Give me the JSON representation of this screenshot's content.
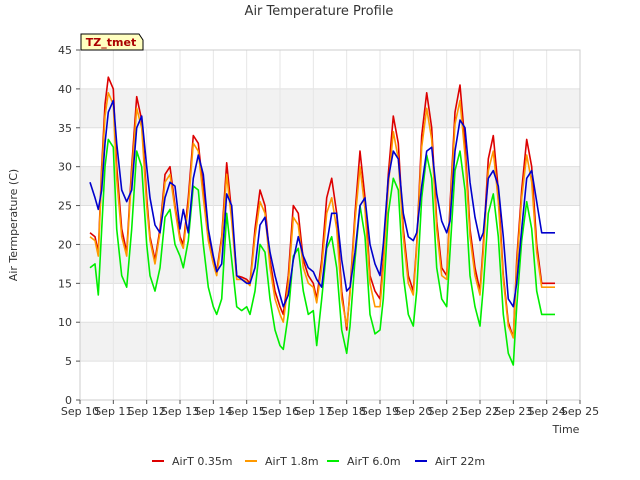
{
  "chart_data": {
    "type": "line",
    "title": "Air Temperature Profile",
    "xlabel": "Time",
    "ylabel": "Air Termperature (C)",
    "station_tag": "TZ_tmet",
    "xlim": [
      10,
      25
    ],
    "ylim": [
      0,
      45
    ],
    "x_ticks": [
      "Sep 10",
      "Sep 11",
      "Sep 12",
      "Sep 13",
      "Sep 14",
      "Sep 15",
      "Sep 16",
      "Sep 17",
      "Sep 18",
      "Sep 19",
      "Sep 20",
      "Sep 21",
      "Sep 22",
      "Sep 23",
      "Sep 24",
      "Sep 25"
    ],
    "y_ticks": [
      0,
      5,
      10,
      15,
      20,
      25,
      30,
      35,
      40,
      45
    ],
    "grid": true,
    "legend_position": "bottom",
    "series": [
      {
        "name": "AirT 0.35m",
        "color": "#dd0000",
        "x": [
          10.3,
          10.45,
          10.55,
          10.65,
          10.75,
          10.85,
          11.0,
          11.1,
          11.25,
          11.4,
          11.55,
          11.7,
          11.85,
          12.0,
          12.1,
          12.25,
          12.4,
          12.55,
          12.7,
          12.85,
          13.0,
          13.1,
          13.25,
          13.4,
          13.55,
          13.7,
          13.85,
          14.0,
          14.1,
          14.25,
          14.4,
          14.55,
          14.7,
          14.85,
          15.0,
          15.1,
          15.25,
          15.4,
          15.55,
          15.7,
          15.85,
          16.0,
          16.1,
          16.25,
          16.4,
          16.55,
          16.7,
          16.85,
          17.0,
          17.1,
          17.25,
          17.4,
          17.55,
          17.7,
          17.85,
          18.0,
          18.1,
          18.25,
          18.4,
          18.55,
          18.7,
          18.85,
          19.0,
          19.1,
          19.25,
          19.4,
          19.55,
          19.7,
          19.85,
          20.0,
          20.1,
          20.25,
          20.4,
          20.55,
          20.7,
          20.85,
          21.0,
          21.1,
          21.25,
          21.4,
          21.55,
          21.7,
          21.85,
          22.0,
          22.1,
          22.25,
          22.4,
          22.55,
          22.7,
          22.85,
          23.0,
          23.1,
          23.25,
          23.4,
          23.55,
          23.7,
          23.85,
          24.0,
          24.1,
          24.25
        ],
        "values": [
          21.5,
          21.0,
          19.0,
          30.0,
          38.0,
          41.5,
          40.0,
          30.0,
          22.0,
          19.0,
          30.0,
          39.0,
          36.0,
          26.0,
          21.0,
          18.0,
          22.0,
          29.0,
          30.0,
          25.0,
          21.0,
          20.0,
          26.0,
          34.0,
          33.0,
          27.0,
          21.0,
          18.0,
          16.5,
          21.0,
          30.5,
          24.0,
          16.0,
          15.8,
          15.5,
          15.0,
          22.0,
          27.0,
          25.0,
          18.0,
          14.0,
          12.0,
          11.0,
          16.0,
          25.0,
          24.0,
          18.0,
          16.0,
          15.0,
          13.0,
          18.0,
          26.0,
          28.5,
          24.0,
          14.0,
          9.0,
          14.0,
          24.0,
          32.0,
          26.0,
          16.0,
          14.0,
          13.0,
          18.0,
          29.0,
          36.5,
          33.0,
          22.0,
          16.0,
          14.0,
          20.0,
          34.0,
          39.5,
          35.0,
          23.0,
          17.0,
          16.0,
          25.0,
          37.0,
          40.5,
          33.0,
          22.0,
          17.0,
          14.0,
          20.0,
          31.0,
          34.0,
          27.0,
          16.0,
          10.0,
          8.0,
          18.0,
          27.0,
          33.5,
          30.0,
          20.0,
          15.0,
          15.0,
          15.0,
          15.0
        ]
      },
      {
        "name": "AirT 1.8m",
        "color": "#ff9900",
        "x": [
          10.3,
          10.45,
          10.55,
          10.65,
          10.75,
          10.85,
          11.0,
          11.1,
          11.25,
          11.4,
          11.55,
          11.7,
          11.85,
          12.0,
          12.1,
          12.25,
          12.4,
          12.55,
          12.7,
          12.85,
          13.0,
          13.1,
          13.25,
          13.4,
          13.55,
          13.7,
          13.85,
          14.0,
          14.1,
          14.25,
          14.4,
          14.55,
          14.7,
          14.85,
          15.0,
          15.1,
          15.25,
          15.4,
          15.55,
          15.7,
          15.85,
          16.0,
          16.1,
          16.25,
          16.4,
          16.55,
          16.7,
          16.85,
          17.0,
          17.1,
          17.25,
          17.4,
          17.55,
          17.7,
          17.85,
          18.0,
          18.1,
          18.25,
          18.4,
          18.55,
          18.7,
          18.85,
          19.0,
          19.1,
          19.25,
          19.4,
          19.55,
          19.7,
          19.85,
          20.0,
          20.1,
          20.25,
          20.4,
          20.55,
          20.7,
          20.85,
          21.0,
          21.1,
          21.25,
          21.4,
          21.55,
          21.7,
          21.85,
          22.0,
          22.1,
          22.25,
          22.4,
          22.55,
          22.7,
          22.85,
          23.0,
          23.1,
          23.25,
          23.4,
          23.55,
          23.7,
          23.85,
          24.0,
          24.1,
          24.25
        ],
        "values": [
          21.0,
          20.5,
          18.5,
          29.0,
          36.5,
          39.5,
          38.0,
          28.5,
          21.0,
          18.5,
          29.0,
          37.5,
          35.0,
          25.0,
          20.5,
          17.5,
          21.5,
          28.0,
          29.0,
          24.5,
          20.5,
          19.5,
          25.0,
          33.0,
          32.0,
          26.0,
          20.5,
          17.5,
          16.0,
          20.5,
          29.0,
          23.0,
          15.5,
          15.5,
          15.2,
          14.7,
          21.0,
          25.5,
          24.0,
          17.0,
          13.0,
          11.0,
          10.0,
          15.0,
          23.5,
          22.5,
          17.0,
          15.0,
          14.5,
          12.5,
          17.0,
          24.0,
          26.0,
          22.0,
          13.0,
          9.5,
          13.5,
          23.0,
          30.0,
          24.5,
          15.0,
          12.0,
          12.0,
          17.0,
          27.5,
          34.5,
          31.0,
          21.0,
          15.0,
          13.5,
          19.5,
          32.5,
          37.5,
          33.5,
          22.0,
          16.0,
          15.5,
          24.0,
          35.5,
          38.5,
          31.5,
          21.0,
          16.0,
          13.5,
          19.0,
          29.5,
          32.0,
          25.5,
          15.5,
          9.5,
          8.0,
          17.0,
          26.0,
          31.5,
          28.0,
          19.0,
          14.5,
          14.5,
          14.5,
          14.5
        ]
      },
      {
        "name": "AirT 6.0m",
        "color": "#00ee00",
        "x": [
          10.3,
          10.45,
          10.55,
          10.65,
          10.75,
          10.85,
          11.0,
          11.1,
          11.25,
          11.4,
          11.55,
          11.7,
          11.85,
          12.0,
          12.1,
          12.25,
          12.4,
          12.55,
          12.7,
          12.85,
          13.0,
          13.1,
          13.25,
          13.4,
          13.55,
          13.7,
          13.85,
          14.0,
          14.1,
          14.25,
          14.4,
          14.55,
          14.7,
          14.85,
          15.0,
          15.1,
          15.25,
          15.4,
          15.55,
          15.7,
          15.85,
          16.0,
          16.1,
          16.25,
          16.4,
          16.55,
          16.7,
          16.85,
          17.0,
          17.1,
          17.25,
          17.4,
          17.55,
          17.7,
          17.85,
          18.0,
          18.1,
          18.25,
          18.4,
          18.55,
          18.7,
          18.85,
          19.0,
          19.1,
          19.25,
          19.4,
          19.55,
          19.7,
          19.85,
          20.0,
          20.1,
          20.25,
          20.4,
          20.55,
          20.7,
          20.85,
          21.0,
          21.1,
          21.25,
          21.4,
          21.55,
          21.7,
          21.85,
          22.0,
          22.1,
          22.25,
          22.4,
          22.55,
          22.7,
          22.85,
          23.0,
          23.1,
          23.25,
          23.4,
          23.55,
          23.7,
          23.85,
          24.0,
          24.1,
          24.25
        ],
        "values": [
          17.0,
          17.5,
          13.5,
          22.0,
          30.0,
          33.5,
          32.5,
          22.0,
          16.0,
          14.5,
          22.0,
          32.0,
          30.0,
          20.0,
          16.0,
          14.0,
          17.0,
          23.5,
          24.5,
          20.0,
          18.5,
          17.0,
          20.5,
          27.5,
          27.0,
          20.0,
          14.5,
          12.0,
          11.0,
          13.0,
          24.0,
          18.0,
          12.0,
          11.5,
          12.0,
          11.0,
          14.0,
          20.0,
          19.0,
          13.0,
          9.0,
          7.0,
          6.5,
          11.0,
          18.5,
          19.5,
          14.0,
          11.0,
          11.5,
          7.0,
          13.0,
          19.5,
          21.0,
          17.0,
          9.0,
          6.0,
          9.5,
          18.0,
          25.0,
          21.0,
          11.0,
          8.5,
          9.0,
          13.0,
          24.0,
          28.5,
          27.0,
          16.0,
          11.0,
          9.5,
          14.0,
          26.0,
          31.5,
          28.5,
          17.0,
          13.0,
          12.0,
          19.0,
          29.5,
          32.0,
          27.0,
          16.0,
          12.0,
          9.5,
          14.5,
          24.0,
          26.5,
          21.0,
          11.0,
          6.0,
          4.5,
          12.0,
          20.5,
          25.5,
          22.0,
          14.0,
          11.0,
          11.0,
          11.0,
          11.0
        ]
      },
      {
        "name": "AirT 22m",
        "color": "#0000cc",
        "x": [
          10.3,
          10.45,
          10.55,
          10.65,
          10.75,
          10.85,
          11.0,
          11.1,
          11.25,
          11.4,
          11.55,
          11.7,
          11.85,
          12.0,
          12.1,
          12.25,
          12.4,
          12.55,
          12.7,
          12.85,
          13.0,
          13.1,
          13.25,
          13.4,
          13.55,
          13.7,
          13.85,
          14.0,
          14.1,
          14.25,
          14.4,
          14.55,
          14.7,
          14.85,
          15.0,
          15.1,
          15.25,
          15.4,
          15.55,
          15.7,
          15.85,
          16.0,
          16.1,
          16.25,
          16.4,
          16.55,
          16.7,
          16.85,
          17.0,
          17.1,
          17.25,
          17.4,
          17.55,
          17.7,
          17.85,
          18.0,
          18.1,
          18.25,
          18.4,
          18.55,
          18.7,
          18.85,
          19.0,
          19.1,
          19.25,
          19.4,
          19.55,
          19.7,
          19.85,
          20.0,
          20.1,
          20.25,
          20.4,
          20.55,
          20.7,
          20.85,
          21.0,
          21.1,
          21.25,
          21.4,
          21.55,
          21.7,
          21.85,
          22.0,
          22.1,
          22.25,
          22.4,
          22.55,
          22.7,
          22.85,
          23.0,
          23.1,
          23.25,
          23.4,
          23.55,
          23.7,
          23.85,
          24.0,
          24.1,
          24.25
        ],
        "values": [
          28.0,
          26.0,
          24.5,
          27.0,
          33.0,
          37.0,
          38.5,
          33.0,
          27.0,
          25.5,
          27.0,
          35.0,
          36.5,
          30.0,
          26.0,
          22.5,
          21.5,
          26.0,
          28.0,
          27.5,
          22.0,
          24.5,
          21.5,
          28.5,
          31.5,
          29.0,
          22.0,
          18.5,
          16.5,
          17.5,
          26.5,
          25.0,
          16.0,
          15.5,
          15.0,
          15.0,
          17.0,
          22.5,
          23.5,
          19.0,
          16.0,
          13.5,
          12.0,
          13.5,
          18.0,
          21.0,
          18.5,
          17.0,
          16.5,
          15.5,
          14.5,
          20.0,
          24.0,
          24.0,
          18.0,
          14.0,
          14.5,
          19.0,
          25.0,
          26.0,
          20.0,
          17.5,
          16.0,
          20.0,
          28.5,
          32.0,
          31.0,
          24.0,
          21.0,
          20.5,
          21.5,
          27.5,
          32.0,
          32.5,
          26.5,
          23.0,
          21.5,
          23.0,
          32.0,
          36.0,
          35.0,
          28.0,
          23.5,
          20.5,
          21.5,
          28.5,
          29.5,
          27.5,
          21.0,
          13.0,
          12.0,
          15.0,
          22.0,
          28.5,
          29.5,
          25.5,
          21.5,
          21.5,
          21.5,
          21.5
        ]
      }
    ]
  }
}
